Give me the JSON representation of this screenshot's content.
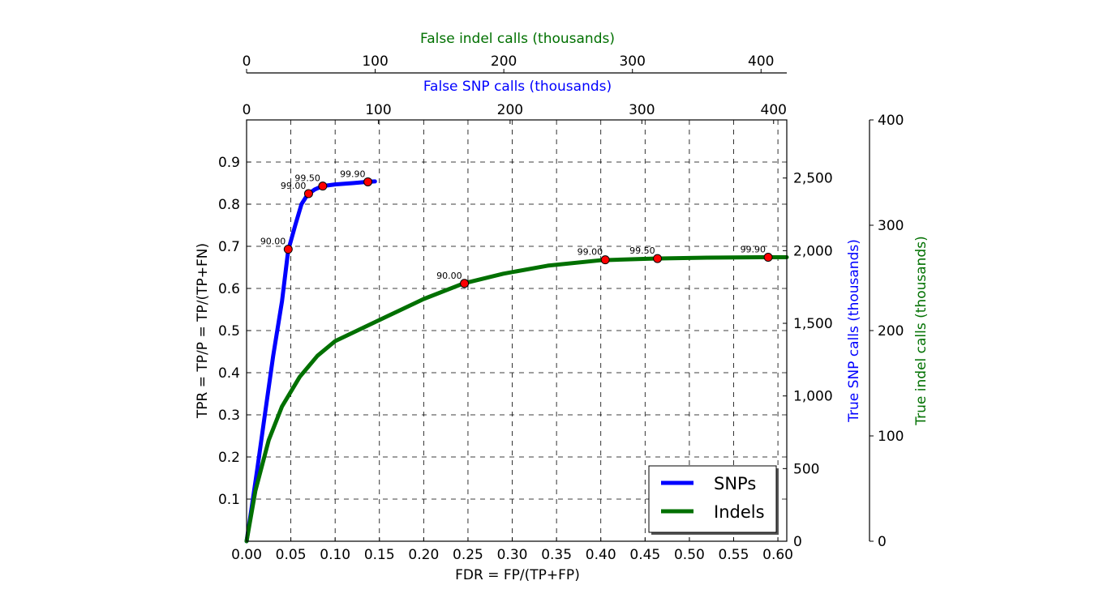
{
  "chart_data": {
    "type": "line",
    "xlabel": "FDR = FP/(TP+FP)",
    "ylabel": "TPR = TP/P = TP/(TP+FN)",
    "xlim": [
      0,
      0.61
    ],
    "ylim": [
      0,
      1.0
    ],
    "x_ticks": [
      "0.00",
      "0.05",
      "0.10",
      "0.15",
      "0.20",
      "0.25",
      "0.30",
      "0.35",
      "0.40",
      "0.45",
      "0.50",
      "0.55",
      "0.60"
    ],
    "y_ticks": [
      "0.1",
      "0.2",
      "0.3",
      "0.4",
      "0.5",
      "0.6",
      "0.7",
      "0.8",
      "0.9"
    ],
    "grid": true,
    "legend": "lower-right",
    "top_axis_snp": {
      "label": "False SNP calls (thousands)",
      "color": "#0000ff",
      "range": [
        0,
        410
      ],
      "ticks": [
        "0",
        "100",
        "200",
        "300",
        "400"
      ]
    },
    "top_axis_indel": {
      "label": "False indel calls (thousands)",
      "color": "#007000",
      "range": [
        0,
        420
      ],
      "ticks": [
        "0",
        "100",
        "200",
        "300",
        "400"
      ]
    },
    "right_axis_snp": {
      "label": "True SNP calls (thousands)",
      "color": "#0000ff",
      "range": [
        0,
        2900
      ],
      "ticks": [
        "0",
        "500",
        "1,000",
        "1,500",
        "2,000",
        "2,500"
      ]
    },
    "right_axis_indel": {
      "label": "True indel calls (thousands)",
      "color": "#007000",
      "range": [
        0,
        400
      ],
      "ticks": [
        "0",
        "100",
        "200",
        "300",
        "400"
      ]
    },
    "series": [
      {
        "name": "SNPs",
        "color": "#0000ff",
        "points": [
          [
            0,
            0
          ],
          [
            0.005,
            0.07
          ],
          [
            0.012,
            0.17
          ],
          [
            0.02,
            0.29
          ],
          [
            0.03,
            0.44
          ],
          [
            0.04,
            0.57
          ],
          [
            0.047,
            0.69
          ],
          [
            0.055,
            0.75
          ],
          [
            0.062,
            0.8
          ],
          [
            0.069,
            0.823
          ],
          [
            0.077,
            0.835
          ],
          [
            0.086,
            0.843
          ],
          [
            0.1,
            0.847
          ],
          [
            0.12,
            0.85
          ],
          [
            0.137,
            0.853
          ],
          [
            0.145,
            0.854
          ]
        ],
        "markers": [
          {
            "x": 0.047,
            "y": 0.693,
            "label": "90.00"
          },
          {
            "x": 0.07,
            "y": 0.825,
            "label": "99.00"
          },
          {
            "x": 0.086,
            "y": 0.843,
            "label": "99.50"
          },
          {
            "x": 0.137,
            "y": 0.853,
            "label": "99.90"
          }
        ]
      },
      {
        "name": "Indels",
        "color": "#007000",
        "points": [
          [
            0,
            0
          ],
          [
            0.01,
            0.12
          ],
          [
            0.025,
            0.24
          ],
          [
            0.04,
            0.32
          ],
          [
            0.06,
            0.39
          ],
          [
            0.08,
            0.44
          ],
          [
            0.1,
            0.475
          ],
          [
            0.13,
            0.505
          ],
          [
            0.16,
            0.535
          ],
          [
            0.2,
            0.575
          ],
          [
            0.245,
            0.612
          ],
          [
            0.29,
            0.635
          ],
          [
            0.34,
            0.654
          ],
          [
            0.4,
            0.667
          ],
          [
            0.46,
            0.671
          ],
          [
            0.52,
            0.673
          ],
          [
            0.58,
            0.674
          ],
          [
            0.61,
            0.674
          ]
        ],
        "markers": [
          {
            "x": 0.246,
            "y": 0.612,
            "label": "90.00"
          },
          {
            "x": 0.405,
            "y": 0.668,
            "label": "99.00"
          },
          {
            "x": 0.464,
            "y": 0.671,
            "label": "99.50"
          },
          {
            "x": 0.589,
            "y": 0.674,
            "label": "99.90"
          }
        ]
      }
    ]
  }
}
